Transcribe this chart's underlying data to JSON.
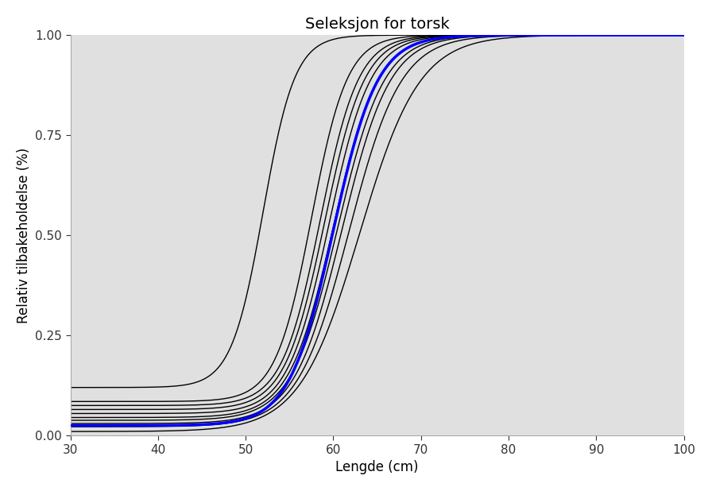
{
  "title": "Seleksjon for torsk",
  "xlabel": "Lengde (cm)",
  "ylabel": "Relativ tilbakeholdelse (%)",
  "xlim": [
    30,
    100
  ],
  "ylim": [
    0.0,
    1.0
  ],
  "xticks": [
    30,
    40,
    50,
    60,
    70,
    80,
    90,
    100
  ],
  "yticks": [
    0.0,
    0.25,
    0.5,
    0.75,
    1.0
  ],
  "background_color": "#e0e0e0",
  "title_fontsize": 14,
  "axis_label_fontsize": 12,
  "tick_fontsize": 11,
  "blue_curve": {
    "L50": 60.0,
    "SR": 5.5,
    "p_min": 0.025,
    "color": "#0000ff",
    "linewidth": 2.5
  },
  "black_curves": [
    {
      "L50": 52.0,
      "SR": 4.0,
      "p_min": 0.12,
      "linewidth": 1.0
    },
    {
      "L50": 57.5,
      "SR": 4.5,
      "p_min": 0.085,
      "linewidth": 1.0
    },
    {
      "L50": 58.5,
      "SR": 4.8,
      "p_min": 0.075,
      "linewidth": 1.0
    },
    {
      "L50": 59.0,
      "SR": 5.0,
      "p_min": 0.065,
      "linewidth": 1.0
    },
    {
      "L50": 59.5,
      "SR": 5.2,
      "p_min": 0.055,
      "linewidth": 1.0
    },
    {
      "L50": 60.0,
      "SR": 5.5,
      "p_min": 0.045,
      "linewidth": 1.0
    },
    {
      "L50": 60.5,
      "SR": 5.8,
      "p_min": 0.038,
      "linewidth": 1.0
    },
    {
      "L50": 61.0,
      "SR": 6.0,
      "p_min": 0.03,
      "linewidth": 1.0
    },
    {
      "L50": 61.8,
      "SR": 6.5,
      "p_min": 0.022,
      "linewidth": 1.0
    },
    {
      "L50": 63.0,
      "SR": 7.5,
      "p_min": 0.01,
      "linewidth": 1.0
    }
  ]
}
